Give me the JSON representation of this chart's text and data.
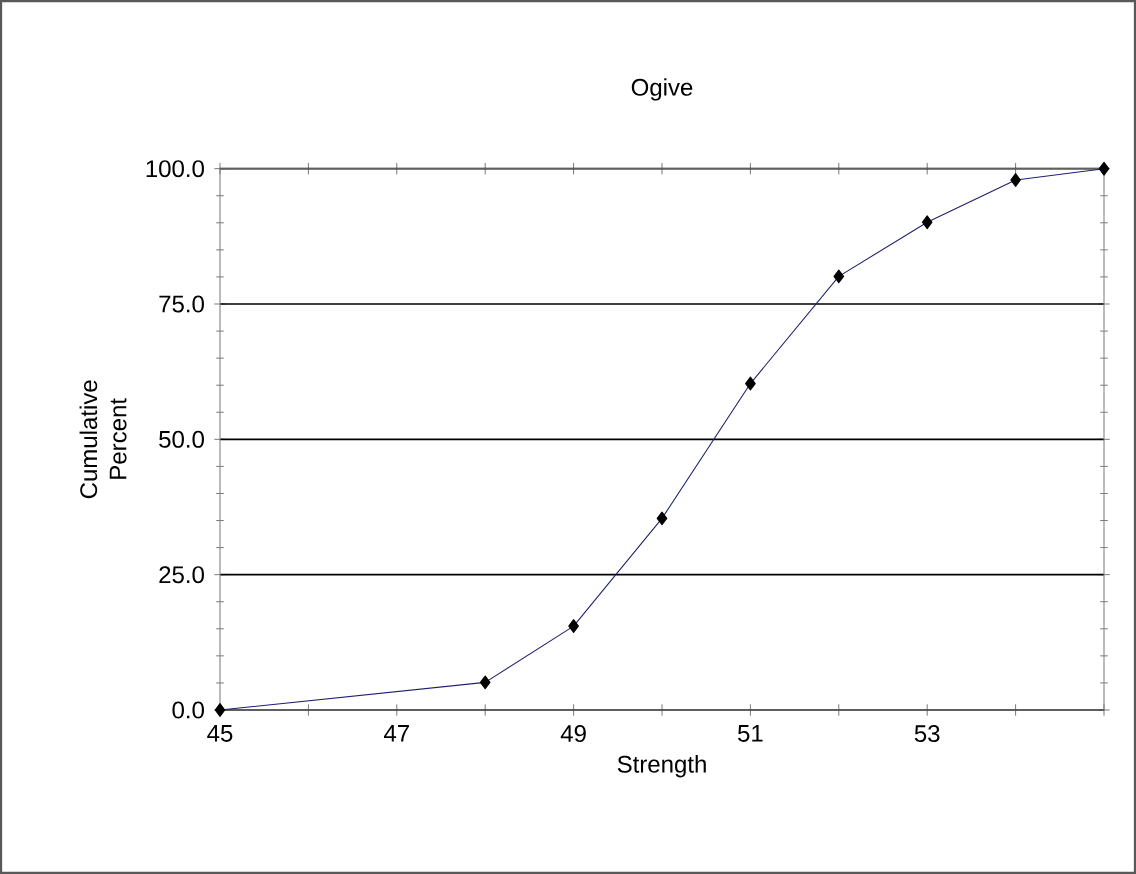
{
  "chart_data": {
    "type": "line",
    "title": "Ogive",
    "xlabel": "Strength",
    "ylabel": "Cumulative Percent",
    "x": [
      45,
      46,
      47,
      48,
      49,
      50,
      51,
      52,
      53,
      54,
      55
    ],
    "series": [
      {
        "color": "#1f1f6e",
        "values": [
          0,
          null,
          null,
          5.1,
          15.5,
          35.4,
          60.3,
          80.1,
          90.1,
          97.9,
          100
        ]
      }
    ],
    "xlim": [
      45,
      55
    ],
    "xticks": [
      45,
      {
        "value": 46,
        "label": null
      },
      47,
      {
        "value": 48,
        "label": null
      },
      49,
      {
        "value": 50,
        "label": null
      },
      51,
      {
        "value": 52,
        "label": null
      },
      53,
      {
        "value": 54,
        "label": null
      },
      {
        "value": 55,
        "label": null
      }
    ],
    "ylim": [
      0,
      100
    ],
    "yticks": [
      {
        "value": 0,
        "label": "0.0"
      },
      {
        "value": 25,
        "label": "25.0"
      },
      {
        "value": 50,
        "label": "50.0"
      },
      {
        "value": 75,
        "label": "75.0"
      },
      {
        "value": 100,
        "label": "100.0"
      }
    ],
    "grid": "y",
    "marker": "diamond",
    "line_style": "solid"
  }
}
